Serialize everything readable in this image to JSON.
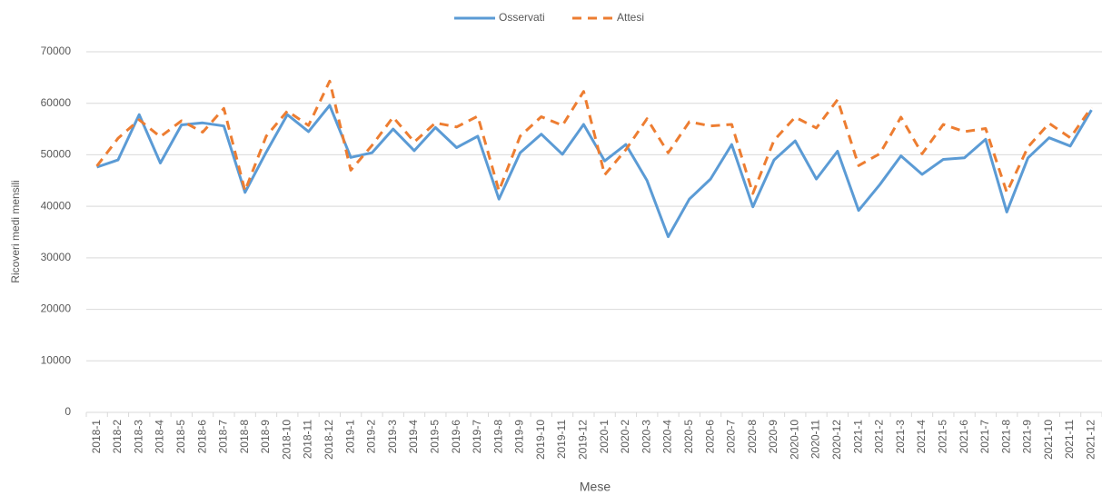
{
  "chart_data": {
    "type": "line",
    "x_label": "Mese",
    "y_label": "Ricoveri medi mensili",
    "categories": [
      "2018-1",
      "2018-2",
      "2018-3",
      "2018-4",
      "2018-5",
      "2018-6",
      "2018-7",
      "2018-8",
      "2018-9",
      "2018-10",
      "2018-11",
      "2018-12",
      "2019-1",
      "2019-2",
      "2019-3",
      "2019-4",
      "2019-5",
      "2019-6",
      "2019-7",
      "2019-8",
      "2019-9",
      "2019-10",
      "2019-11",
      "2019-12",
      "2020-1",
      "2020-2",
      "2020-3",
      "2020-4",
      "2020-5",
      "2020-6",
      "2020-7",
      "2020-8",
      "2020-9",
      "2020-10",
      "2020-11",
      "2020-12",
      "2021-1",
      "2021-2",
      "2021-3",
      "2021-4",
      "2021-5",
      "2021-6",
      "2021-7",
      "2021-8",
      "2021-9",
      "2021-10",
      "2021-11",
      "2021-12"
    ],
    "series": [
      {
        "name": "Osservati",
        "color": "#5b9bd5",
        "dash": false,
        "values": [
          47600,
          49000,
          57800,
          48400,
          55800,
          56200,
          55600,
          42700,
          50500,
          57800,
          54500,
          59600,
          49500,
          50400,
          55000,
          50800,
          55300,
          51400,
          53600,
          41400,
          50400,
          54000,
          50100,
          55900,
          48800,
          52000,
          45000,
          34100,
          41400,
          45300,
          52000,
          39900,
          49000,
          52700,
          45300,
          50700,
          39200,
          44200,
          49800,
          46200,
          49100,
          49400,
          53000,
          38900,
          49400,
          53300,
          51700,
          58700
        ]
      },
      {
        "name": "Attesi",
        "color": "#ed7d31",
        "dash": true,
        "values": [
          47800,
          53200,
          56800,
          53500,
          56600,
          54400,
          59000,
          43000,
          53600,
          58500,
          55700,
          64300,
          47000,
          51800,
          57300,
          52500,
          56200,
          55400,
          57500,
          43000,
          53600,
          57400,
          55700,
          62300,
          46100,
          51000,
          57000,
          50400,
          56400,
          55600,
          55900,
          42500,
          52800,
          57300,
          55200,
          60700,
          47900,
          50200,
          57300,
          50200,
          55900,
          54500,
          55100,
          42700,
          51500,
          56100,
          53300,
          59200
        ]
      }
    ],
    "ylim": [
      0,
      70000
    ],
    "yticks": [
      0,
      10000,
      20000,
      30000,
      40000,
      50000,
      60000,
      70000
    ],
    "grid": true,
    "legend": "top"
  }
}
